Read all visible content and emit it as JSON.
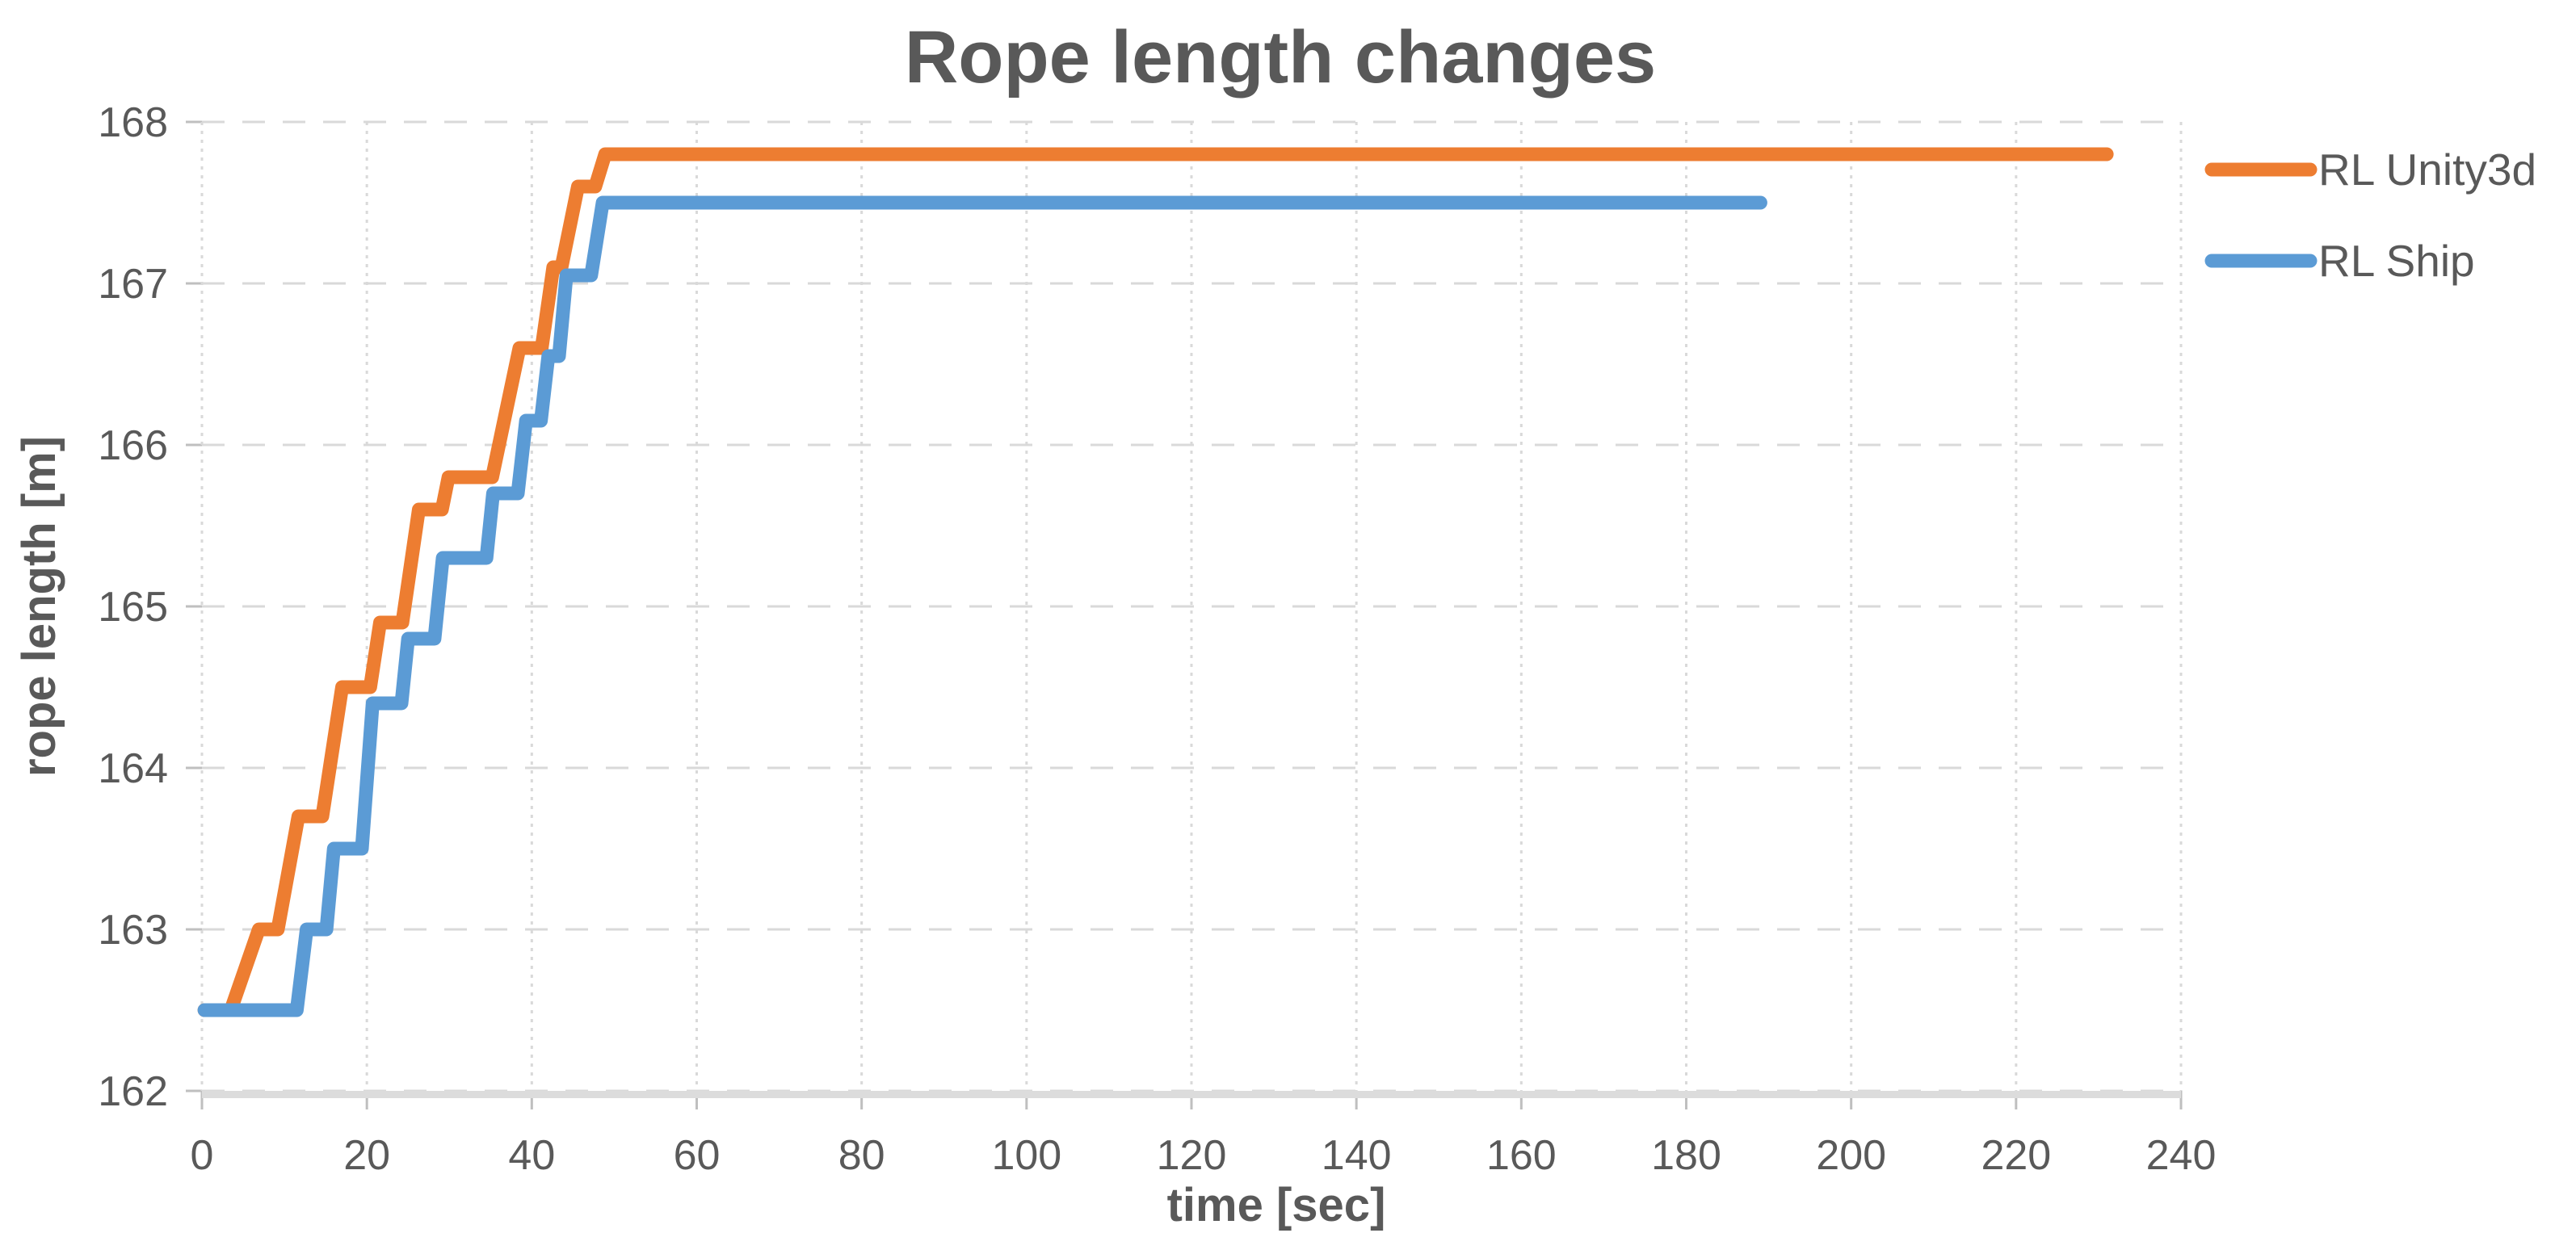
{
  "chart_data": {
    "type": "line",
    "title": "Rope length changes",
    "xlabel": "time [sec]",
    "ylabel": "rope length [m]",
    "xlim": [
      0,
      240
    ],
    "ylim": [
      162,
      168
    ],
    "x_ticks": [
      0,
      20,
      40,
      60,
      80,
      100,
      120,
      140,
      160,
      180,
      200,
      220,
      240
    ],
    "y_ticks": [
      162,
      163,
      164,
      165,
      166,
      167,
      168
    ],
    "grid": {
      "horizontal": "dashed",
      "vertical": "dotted",
      "color": "#D9D9D9"
    },
    "legend_position": "right",
    "text_color": "#595959",
    "axis_color": "#BFBFBF",
    "series": [
      {
        "name": "RL Unity3d",
        "color": "#ED7D31",
        "points": [
          [
            0.3,
            162.5
          ],
          [
            3.5,
            162.5
          ],
          [
            6.9,
            163.0
          ],
          [
            9.2,
            163.0
          ],
          [
            11.7,
            163.7
          ],
          [
            14.6,
            163.7
          ],
          [
            17.0,
            164.5
          ],
          [
            20.4,
            164.5
          ],
          [
            21.6,
            164.9
          ],
          [
            24.3,
            164.9
          ],
          [
            26.3,
            165.6
          ],
          [
            29.1,
            165.6
          ],
          [
            29.9,
            165.8
          ],
          [
            35.2,
            165.8
          ],
          [
            38.5,
            166.6
          ],
          [
            41.2,
            166.6
          ],
          [
            42.6,
            167.1
          ],
          [
            43.6,
            167.1
          ],
          [
            45.6,
            167.6
          ],
          [
            47.7,
            167.6
          ],
          [
            48.9,
            167.8
          ],
          [
            231,
            167.8
          ]
        ]
      },
      {
        "name": "RL Ship",
        "color": "#5B9BD5",
        "points": [
          [
            0.3,
            162.5
          ],
          [
            11.5,
            162.5
          ],
          [
            12.7,
            163.0
          ],
          [
            15.1,
            163.0
          ],
          [
            16.0,
            163.5
          ],
          [
            19.4,
            163.5
          ],
          [
            20.7,
            164.4
          ],
          [
            24.2,
            164.4
          ],
          [
            25.0,
            164.8
          ],
          [
            28.2,
            164.8
          ],
          [
            29.2,
            165.3
          ],
          [
            34.5,
            165.3
          ],
          [
            35.3,
            165.7
          ],
          [
            38.3,
            165.7
          ],
          [
            39.3,
            166.15
          ],
          [
            41.1,
            166.15
          ],
          [
            42.0,
            166.55
          ],
          [
            43.3,
            166.55
          ],
          [
            44.2,
            167.05
          ],
          [
            47.2,
            167.05
          ],
          [
            48.6,
            167.5
          ],
          [
            189,
            167.5
          ]
        ]
      }
    ]
  }
}
